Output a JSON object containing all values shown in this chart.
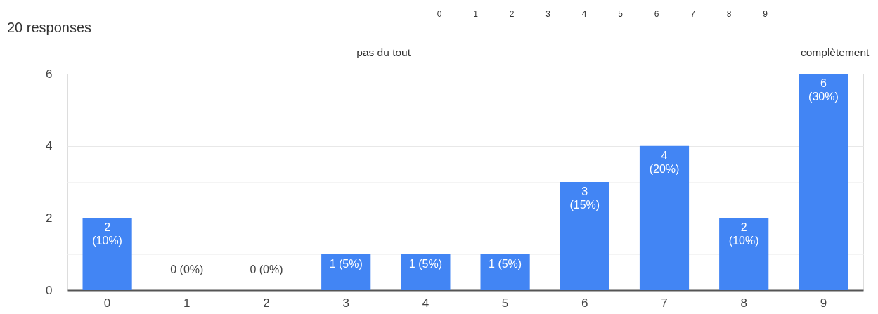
{
  "chart_data": {
    "type": "bar",
    "title": "20 responses",
    "categories": [
      "0",
      "1",
      "2",
      "3",
      "4",
      "5",
      "6",
      "7",
      "8",
      "9"
    ],
    "values": [
      2,
      0,
      0,
      1,
      1,
      1,
      3,
      4,
      2,
      6
    ],
    "value_labels": [
      "2\n(10%)",
      "0 (0%)",
      "0 (0%)",
      "1 (5%)",
      "1 (5%)",
      "1 (5%)",
      "3\n(15%)",
      "4\n(20%)",
      "2\n(10%)",
      "6\n(30%)"
    ],
    "color": "#4285f4",
    "ylim": [
      0,
      6
    ],
    "yticks": [
      0,
      {
        "value": 1,
        "label": null
      },
      2,
      {
        "value": 3,
        "label": null
      },
      4,
      {
        "value": 5,
        "label": null
      },
      6
    ],
    "grid": "y",
    "annotations": [
      "0",
      "1",
      "2",
      "3",
      "4",
      "5",
      "6",
      "7",
      "8",
      "9",
      "pas du tout",
      "complètement"
    ]
  }
}
